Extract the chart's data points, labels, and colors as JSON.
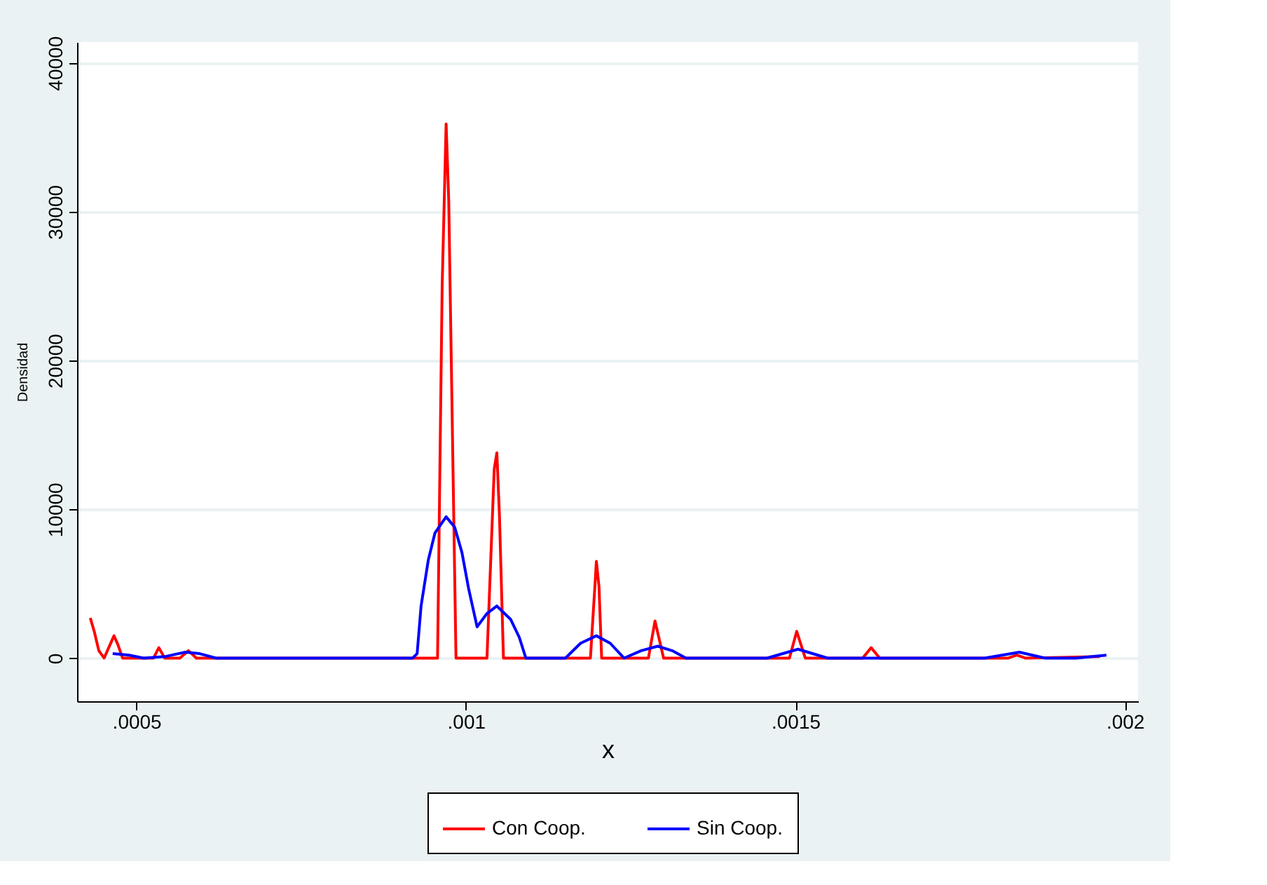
{
  "chart_data": {
    "type": "line",
    "xlabel": "x",
    "ylabel": "Densidad",
    "xlim": [
      0.00041,
      0.00202
    ],
    "ylim": [
      -2900,
      41400
    ],
    "xticks": [
      {
        "value": 0.0005,
        "label": ".0005"
      },
      {
        "value": 0.001,
        "label": ".001"
      },
      {
        "value": 0.0015,
        "label": ".0015"
      },
      {
        "value": 0.002,
        "label": ".002"
      }
    ],
    "yticks": [
      0,
      10000,
      20000,
      30000,
      40000
    ],
    "grid": "y",
    "legend": "bottom",
    "line_style": "solid",
    "series": [
      {
        "name": "Con Coop.",
        "color": "#ff0000",
        "x": [
          0.00043,
          0.000436,
          0.000443,
          0.000451,
          0.00046,
          0.000466,
          0.000472,
          0.000479,
          0.000526,
          0.000534,
          0.000543,
          0.000566,
          0.000579,
          0.000591,
          0.000957,
          0.000964,
          0.00097,
          0.000974,
          0.000985,
          0.001032,
          0.001043,
          0.001047,
          0.001051,
          0.001057,
          0.001189,
          0.001196,
          0.001198,
          0.001202,
          0.001206,
          0.001277,
          0.001287,
          0.0013,
          0.001491,
          0.001502,
          0.001515,
          0.001602,
          0.001615,
          0.001628,
          0.001823,
          0.001836,
          0.001849,
          0.001962
        ],
        "values": [
          2700,
          1800,
          500,
          0,
          900,
          1500,
          900,
          0,
          0,
          700,
          0,
          0,
          500,
          0,
          0,
          25000,
          35900,
          30700,
          0,
          0,
          12700,
          13800,
          9500,
          0,
          0,
          5000,
          6500,
          4800,
          0,
          0,
          2500,
          0,
          0,
          1800,
          0,
          0,
          700,
          0,
          0,
          200,
          0,
          100
        ]
      },
      {
        "name": "Sin Coop.",
        "color": "#0000ff",
        "x": [
          0.000464,
          0.000489,
          0.000511,
          0.000543,
          0.000574,
          0.000596,
          0.000621,
          0.000919,
          0.000926,
          0.000932,
          0.000943,
          0.000953,
          0.00097,
          0.000983,
          0.000994,
          0.001004,
          0.001013,
          0.001017,
          0.001032,
          0.001047,
          0.001068,
          0.001081,
          0.001091,
          0.001151,
          0.001174,
          0.001198,
          0.001219,
          0.00124,
          0.001266,
          0.001291,
          0.001313,
          0.001334,
          0.001457,
          0.001504,
          0.001549,
          0.001787,
          0.00184,
          0.001879,
          0.001926,
          0.001972
        ],
        "values": [
          300,
          200,
          0,
          100,
          400,
          300,
          0,
          0,
          300,
          3500,
          6600,
          8400,
          9500,
          8800,
          7100,
          4700,
          2900,
          2100,
          3000,
          3500,
          2600,
          1400,
          0,
          0,
          1000,
          1500,
          1000,
          0,
          500,
          800,
          500,
          0,
          0,
          600,
          0,
          0,
          400,
          0,
          0,
          200
        ]
      }
    ]
  }
}
